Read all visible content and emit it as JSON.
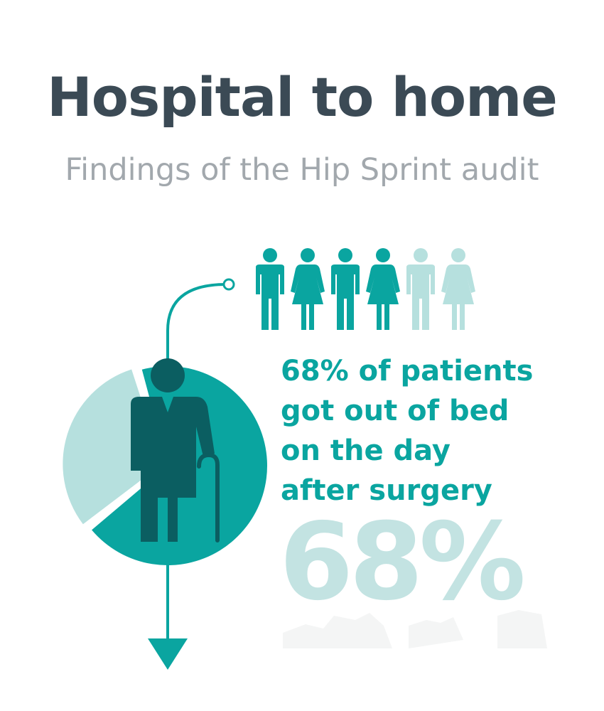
{
  "title": "Hospital to home",
  "subtitle": "Findings of the Hip Sprint audit",
  "stat": {
    "headline_lines": [
      "68% of patients",
      "got out of bed",
      "on the day",
      "after surgery"
    ],
    "big_value": "68%",
    "fraction": 0.68
  },
  "people_icons": [
    {
      "gender": "male",
      "highlighted": true
    },
    {
      "gender": "female",
      "highlighted": true
    },
    {
      "gender": "male",
      "highlighted": true
    },
    {
      "gender": "female",
      "highlighted": true
    },
    {
      "gender": "male",
      "highlighted": false
    },
    {
      "gender": "female",
      "highlighted": false
    }
  ],
  "colors": {
    "title": "#3b4a55",
    "subtitle": "#a2a8ad",
    "teal": "#0aa5a0",
    "teal_light": "#b6e0de",
    "teal_dark": "#0b5e61",
    "stat_faded": "#c3e3e2"
  },
  "icons": {
    "figure": "elderly-person-with-cane-icon",
    "person": "person-icon"
  }
}
